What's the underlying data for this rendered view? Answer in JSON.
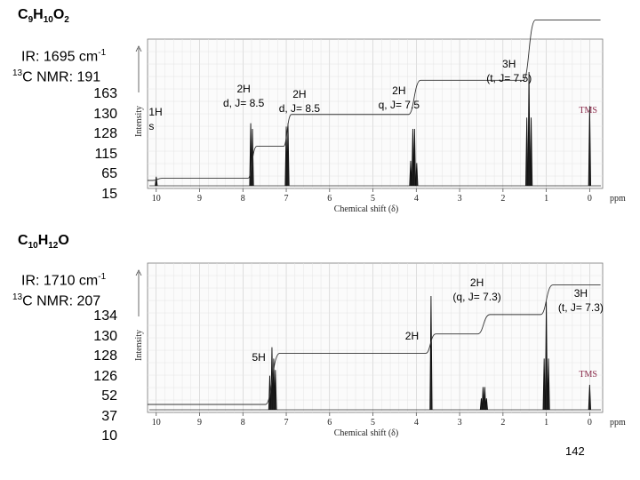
{
  "compound1": {
    "formula": {
      "c": "C",
      "c_n": "9",
      "h": "H",
      "h_n": "10",
      "o": "O",
      "o_n": "2"
    },
    "ir_prefix": "IR:  1695 cm",
    "ir_sup": "-1",
    "nmr_sup": "13",
    "nmr_label": "C NMR:  191",
    "nmr_rest": [
      "163",
      "130",
      "128",
      "115",
      "65",
      "15"
    ]
  },
  "compound2": {
    "formula": {
      "c": "C",
      "c_n": "10",
      "h": "H",
      "h_n": "12",
      "o": "O",
      "o_n": ""
    },
    "ir_prefix": "IR:  1710 cm",
    "ir_sup": "-1",
    "nmr_sup": "13",
    "nmr_label": "C NMR:  207",
    "nmr_rest": [
      "134",
      "130",
      "128",
      "126",
      "52",
      "37",
      "10"
    ]
  },
  "page_number": "142",
  "chart_data": [
    {
      "type": "line",
      "title": "",
      "xlabel": "Chemical shift (δ)",
      "ylabel": "Intensity",
      "x_unit": "ppm",
      "xlim": [
        10.2,
        -0.3
      ],
      "x_ticks": [
        "10",
        "9",
        "8",
        "7",
        "6",
        "5",
        "4",
        "3",
        "2",
        "1",
        "0"
      ],
      "tms_label": "TMS",
      "peaks": [
        {
          "shift": 10.0,
          "height": 0.08,
          "group": "s"
        },
        {
          "shift": 7.82,
          "height": 0.55,
          "group": "d"
        },
        {
          "shift": 7.78,
          "height": 0.5,
          "group": "d"
        },
        {
          "shift": 7.0,
          "height": 0.52,
          "group": "d"
        },
        {
          "shift": 6.96,
          "height": 0.55,
          "group": "d"
        },
        {
          "shift": 4.13,
          "height": 0.22,
          "group": "q"
        },
        {
          "shift": 4.08,
          "height": 0.5,
          "group": "q"
        },
        {
          "shift": 4.04,
          "height": 0.5,
          "group": "q"
        },
        {
          "shift": 3.99,
          "height": 0.2,
          "group": "q"
        },
        {
          "shift": 1.45,
          "height": 0.6,
          "group": "t"
        },
        {
          "shift": 1.4,
          "height": 1.0,
          "group": "t"
        },
        {
          "shift": 1.35,
          "height": 0.6,
          "group": "t"
        },
        {
          "shift": 0.0,
          "height": 0.7,
          "group": "tms"
        }
      ],
      "integration_steps": [
        {
          "start": 10.1,
          "end": 9.85,
          "rise": 0.02
        },
        {
          "start": 7.9,
          "end": 7.68,
          "rise": 0.28
        },
        {
          "start": 7.08,
          "end": 6.88,
          "rise": 0.28
        },
        {
          "start": 4.2,
          "end": 3.9,
          "rise": 0.3
        },
        {
          "start": 1.55,
          "end": 1.25,
          "rise": 0.53
        }
      ],
      "annotations": [
        {
          "lines": [
            "1H",
            "s"
          ],
          "shift": 10.05
        },
        {
          "lines": [
            "2H",
            "d, J= 8.5"
          ],
          "shift": 7.9
        },
        {
          "lines": [
            "2H",
            "d, J= 8.5"
          ],
          "shift": 6.9
        },
        {
          "lines": [
            "2H",
            "q, J= 7.5"
          ],
          "shift": 4.4
        },
        {
          "lines": [
            "3H",
            "(t, J= 7.5)"
          ],
          "shift": 1.9
        }
      ]
    },
    {
      "type": "line",
      "title": "",
      "xlabel": "Chemical shift (δ)",
      "ylabel": "Intensity",
      "x_unit": "ppm",
      "xlim": [
        10.2,
        -0.3
      ],
      "x_ticks": [
        "10",
        "9",
        "8",
        "7",
        "6",
        "5",
        "4",
        "3",
        "2",
        "1",
        "0"
      ],
      "tms_label": "TMS",
      "peaks": [
        {
          "shift": 7.38,
          "height": 0.3,
          "group": "ar"
        },
        {
          "shift": 7.33,
          "height": 0.55,
          "group": "ar"
        },
        {
          "shift": 7.29,
          "height": 0.45,
          "group": "ar"
        },
        {
          "shift": 7.25,
          "height": 0.35,
          "group": "ar"
        },
        {
          "shift": 3.66,
          "height": 1.0,
          "group": "s"
        },
        {
          "shift": 2.5,
          "height": 0.1,
          "group": "q"
        },
        {
          "shift": 2.46,
          "height": 0.2,
          "group": "q"
        },
        {
          "shift": 2.42,
          "height": 0.2,
          "group": "q"
        },
        {
          "shift": 2.38,
          "height": 0.1,
          "group": "q"
        },
        {
          "shift": 1.05,
          "height": 0.45,
          "group": "t"
        },
        {
          "shift": 1.0,
          "height": 0.95,
          "group": "t"
        },
        {
          "shift": 0.95,
          "height": 0.45,
          "group": "t"
        },
        {
          "shift": 0.0,
          "height": 0.22,
          "group": "tms"
        }
      ],
      "integration_steps": [
        {
          "start": 7.5,
          "end": 7.15,
          "rise": 0.45
        },
        {
          "start": 3.8,
          "end": 3.55,
          "rise": 0.17
        },
        {
          "start": 2.6,
          "end": 2.3,
          "rise": 0.17
        },
        {
          "start": 1.15,
          "end": 0.85,
          "rise": 0.26
        }
      ],
      "annotations": [
        {
          "lines": [
            "5H"
          ],
          "shift": 7.75
        },
        {
          "lines": [
            "2H"
          ],
          "shift": 4.1
        },
        {
          "lines": [
            "2H",
            "(q, J= 7.3)"
          ],
          "shift": 2.6
        },
        {
          "lines": [
            "3H",
            "(t, J= 7.3)"
          ],
          "shift": 0.45
        }
      ]
    }
  ]
}
